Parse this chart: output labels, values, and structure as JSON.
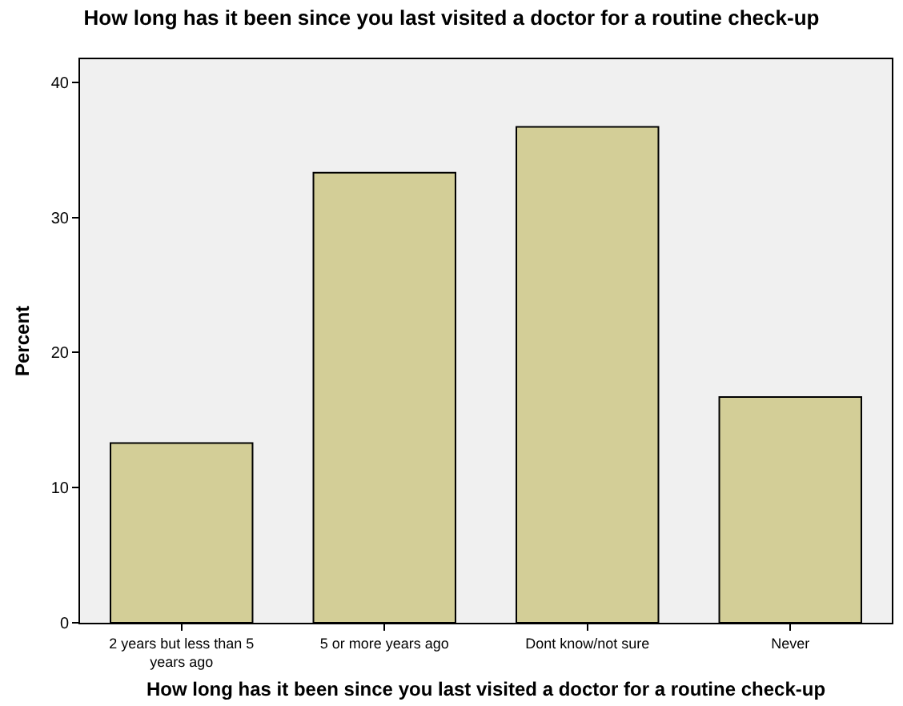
{
  "chart_data": {
    "type": "bar",
    "title": "How long has it been since you last visited a doctor for a routine check-up",
    "xlabel": "How long has it been since you last visited a doctor for a routine check-up",
    "ylabel": "Percent",
    "categories": [
      "2 years but less than 5 years ago",
      "5 or more years ago",
      "Dont know/not sure",
      "Never"
    ],
    "values": [
      13.3,
      33.3,
      36.7,
      16.7
    ],
    "color": "#d3ce97",
    "ylim": [
      0,
      41.7
    ],
    "yticks": [
      0,
      10,
      20,
      30,
      40
    ],
    "grid": false,
    "legend": false
  }
}
